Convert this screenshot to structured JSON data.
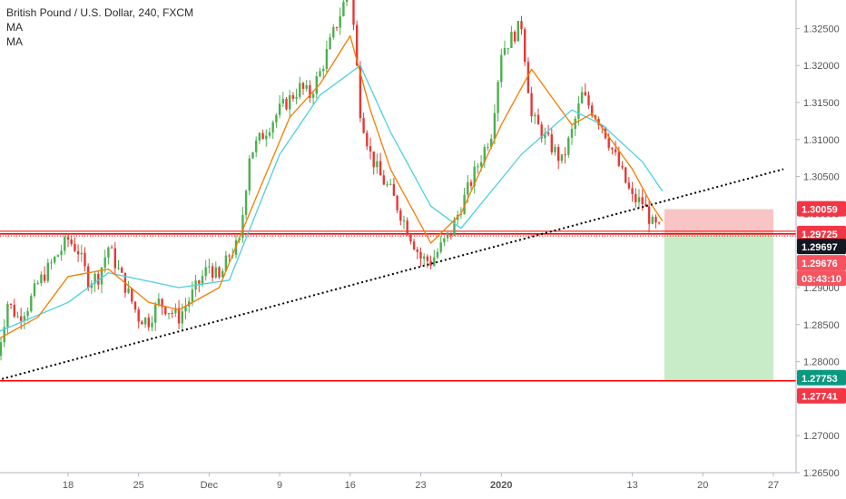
{
  "legend": {
    "title": "British Pound / U.S. Dollar, 240, FXCM",
    "ma1": "MA",
    "ma2": "MA"
  },
  "colors": {
    "up": "#26a69a",
    "down": "#ef5350",
    "candle_up": "#4caf50",
    "candle_down": "#e53935",
    "ma_fast": "#f57c00",
    "ma_slow": "#4dd0e1",
    "level": "#ff0000",
    "trendline": "#000000",
    "stop_zone": "#f9c4c4",
    "target_zone": "#c8ebc8",
    "tag_red": "#f23645",
    "tag_green": "#089981",
    "tag_dark": "#131722",
    "tag_pink": "#f7525f"
  },
  "chart_data": {
    "type": "candlestick",
    "symbol": "British Pound / U.S. Dollar, 240, FXCM",
    "indicators": [
      "MA",
      "MA"
    ],
    "ylim": [
      1.265,
      1.3275
    ],
    "y_ticks": [
      "1.32500",
      "1.32000",
      "1.31500",
      "1.31000",
      "1.30500",
      "1.30000",
      "1.29500",
      "1.29000",
      "1.28500",
      "1.28000",
      "1.27500",
      "1.27000",
      "1.26500"
    ],
    "x_ticks": [
      "18",
      "25",
      "Dec",
      "9",
      "16",
      "23",
      "2020",
      "13",
      "20",
      "27"
    ],
    "price_path": [
      [
        "Nov 11",
        1.2808
      ],
      [
        "Nov 12",
        1.288
      ],
      [
        "Nov 13",
        1.286
      ],
      [
        "Nov 14",
        1.2875
      ],
      [
        "Nov 15",
        1.2905
      ],
      [
        "Nov 18",
        1.2965
      ],
      [
        "Nov 19",
        1.295
      ],
      [
        "Nov 20",
        1.291
      ],
      [
        "Nov 21",
        1.2915
      ],
      [
        "Nov 22",
        1.2955
      ],
      [
        "Nov 25",
        1.286
      ],
      [
        "Nov 26",
        1.2855
      ],
      [
        "Nov 27",
        1.288
      ],
      [
        "Nov 28",
        1.287
      ],
      [
        "Nov 29",
        1.286
      ],
      [
        "Dec 2",
        1.293
      ],
      [
        "Dec 3",
        1.291
      ],
      [
        "Dec 4",
        1.2945
      ],
      [
        "Dec 5",
        1.296
      ],
      [
        "Dec 6",
        1.308
      ],
      [
        "Dec 9",
        1.314
      ],
      [
        "Dec 10",
        1.3155
      ],
      [
        "Dec 11",
        1.317
      ],
      [
        "Dec 12",
        1.316
      ],
      [
        "Dec 13",
        1.319
      ],
      [
        "Dec 16",
        1.331
      ],
      [
        "Dec 17",
        1.314
      ],
      [
        "Dec 18",
        1.308
      ],
      [
        "Dec 19",
        1.305
      ],
      [
        "Dec 20",
        1.303
      ],
      [
        "Dec 23",
        1.294
      ],
      [
        "Dec 24",
        1.2935
      ],
      [
        "Dec 26",
        1.2975
      ],
      [
        "Dec 27",
        1.301
      ],
      [
        "Dec 30",
        1.311
      ],
      [
        "Dec 31",
        1.322
      ],
      [
        "Jan 2",
        1.3255
      ],
      [
        "Jan 3",
        1.313
      ],
      [
        "Jan 6",
        1.307
      ],
      [
        "Jan 7",
        1.311
      ],
      [
        "Jan 8",
        1.316
      ],
      [
        "Jan 9",
        1.314
      ],
      [
        "Jan 10",
        1.312
      ],
      [
        "Jan 13",
        1.302
      ],
      [
        "Jan 14",
        1.3015
      ],
      [
        "Jan 15",
        1.2985
      ],
      [
        "Jan 16",
        1.2975
      ]
    ],
    "ma_fast_path": [
      [
        "Nov 11",
        1.283
      ],
      [
        "Nov 15",
        1.286
      ],
      [
        "Nov 18",
        1.2915
      ],
      [
        "Nov 22",
        1.2925
      ],
      [
        "Nov 26",
        1.288
      ],
      [
        "Nov 29",
        1.287
      ],
      [
        "Dec 3",
        1.29
      ],
      [
        "Dec 6",
        1.3
      ],
      [
        "Dec 10",
        1.313
      ],
      [
        "Dec 13",
        1.3175
      ],
      [
        "Dec 16",
        1.324
      ],
      [
        "Dec 18",
        1.314
      ],
      [
        "Dec 20",
        1.306
      ],
      [
        "Dec 24",
        1.296
      ],
      [
        "Dec 27",
        1.3
      ],
      [
        "Dec 31",
        1.312
      ],
      [
        "Jan 3",
        1.3195
      ],
      [
        "Jan 7",
        1.312
      ],
      [
        "Jan 9",
        1.3135
      ],
      [
        "Jan 13",
        1.306
      ],
      [
        "Jan 15",
        1.301
      ],
      [
        "Jan 16",
        1.299
      ]
    ],
    "ma_slow_path": [
      [
        "Nov 11",
        1.284
      ],
      [
        "Nov 18",
        1.288
      ],
      [
        "Nov 22",
        1.292
      ],
      [
        "Nov 29",
        1.29
      ],
      [
        "Dec 4",
        1.291
      ],
      [
        "Dec 9",
        1.308
      ],
      [
        "Dec 13",
        1.316
      ],
      [
        "Dec 17",
        1.32
      ],
      [
        "Dec 20",
        1.311
      ],
      [
        "Dec 24",
        1.301
      ],
      [
        "Dec 27",
        1.298
      ],
      [
        "Jan 2",
        1.308
      ],
      [
        "Jan 7",
        1.314
      ],
      [
        "Jan 10",
        1.312
      ],
      [
        "Jan 14",
        1.307
      ],
      [
        "Jan 16",
        1.303
      ]
    ],
    "trendline": [
      [
        "Nov 11",
        1.2775
      ],
      [
        "Jan 28",
        1.306
      ]
    ],
    "levels": [
      1.29725,
      1.27741
    ],
    "position": {
      "entry": 1.29725,
      "stop": 1.30059,
      "target": 1.27753,
      "start": "Jan 16",
      "end": "Jan 27"
    },
    "price_tags": [
      {
        "value": "1.30059",
        "kind": "stop"
      },
      {
        "value": "1.29725",
        "kind": "level"
      },
      {
        "value": "1.29697",
        "kind": "current"
      },
      {
        "value": "1.29676",
        "kind": "bid"
      },
      {
        "value": "03:43:10",
        "kind": "countdown"
      },
      {
        "value": "1.27753",
        "kind": "target"
      },
      {
        "value": "1.27741",
        "kind": "level"
      }
    ]
  }
}
